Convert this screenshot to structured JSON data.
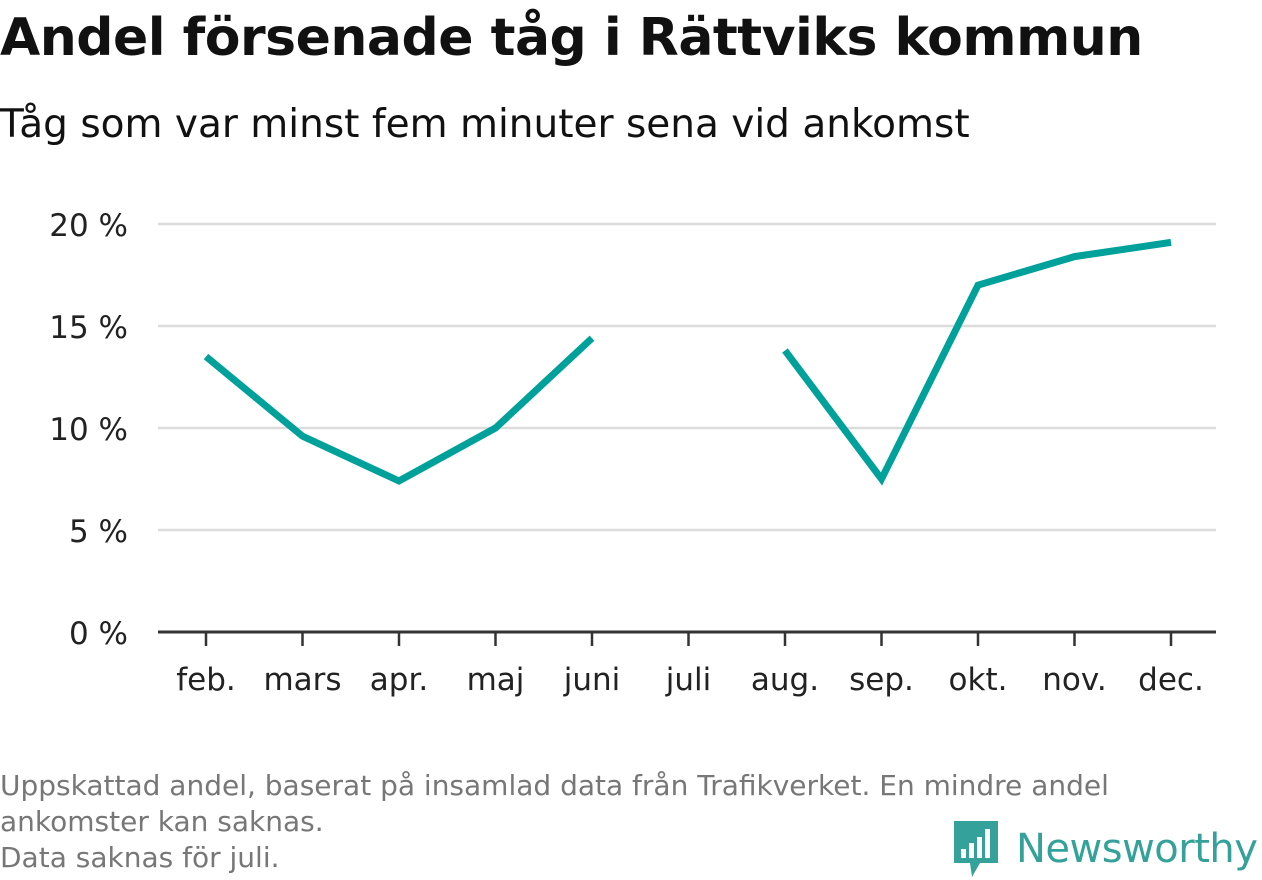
{
  "chart_data": {
    "type": "line",
    "title": "Andel försenade tåg i Rättviks kommun",
    "subtitle": "Tåg som var minst fem minuter sena vid ankomst",
    "categories": [
      "feb.",
      "mars",
      "apr.",
      "maj",
      "juni",
      "juli",
      "aug.",
      "sep.",
      "okt.",
      "nov.",
      "dec."
    ],
    "series": [
      {
        "values": [
          13.5,
          9.6,
          7.4,
          10.0,
          14.4,
          null,
          13.8,
          7.5,
          17.0,
          18.4,
          19.1
        ]
      }
    ],
    "y_ticks": [
      {
        "value": 0,
        "label": "0 %"
      },
      {
        "value": 5,
        "label": "5 %"
      },
      {
        "value": 10,
        "label": "10 %"
      },
      {
        "value": 15,
        "label": "15 %"
      },
      {
        "value": 20,
        "label": "20 %"
      }
    ],
    "ylim": [
      0,
      20
    ],
    "grid": true,
    "line_color": "#00a19a"
  },
  "notes": {
    "line1": "Uppskattad andel, baserat på insamlad data från Trafikverket. En mindre andel",
    "line2": "ankomster kan saknas.",
    "line3": "Data saknas för juli."
  },
  "brand": {
    "name": "Newsworthy",
    "icon": "newsworthy-logo-icon",
    "color": "#34a29a"
  }
}
